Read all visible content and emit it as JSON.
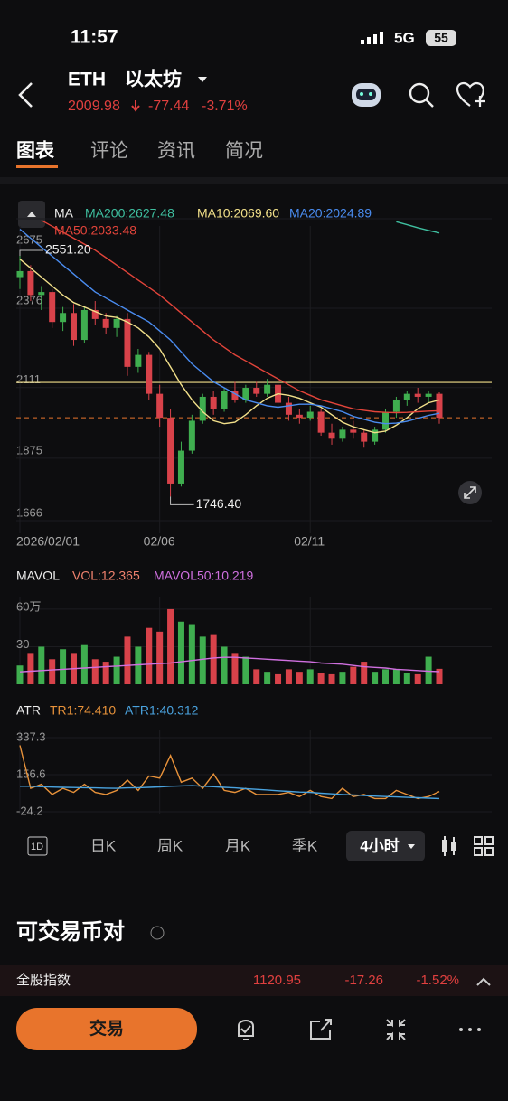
{
  "status": {
    "time": "11:57",
    "network": "5G",
    "battery": "55"
  },
  "header": {
    "symbol": "ETH",
    "name": "以太坊",
    "price": "2009.98",
    "change": "-77.44",
    "change_pct": "-3.71%"
  },
  "tabs": [
    "图表",
    "评论",
    "资讯",
    "简况"
  ],
  "chart_data": {
    "type": "candlestick",
    "title": "MA",
    "categories": [
      "2026/02/01",
      null,
      null,
      null,
      null,
      null,
      null,
      null,
      null,
      null,
      null,
      null,
      null,
      "02/06",
      null,
      null,
      null,
      null,
      null,
      null,
      null,
      null,
      null,
      null,
      null,
      null,
      null,
      "02/11",
      null,
      null,
      null,
      null,
      null,
      null,
      null,
      null,
      null,
      null,
      null,
      null
    ],
    "candles": [
      [
        2480,
        2551.2,
        2440,
        2500
      ],
      [
        2500,
        2520,
        2400,
        2420
      ],
      [
        2420,
        2450,
        2370,
        2430
      ],
      [
        2430,
        2440,
        2310,
        2330
      ],
      [
        2330,
        2380,
        2300,
        2360
      ],
      [
        2360,
        2390,
        2250,
        2270
      ],
      [
        2270,
        2380,
        2260,
        2370
      ],
      [
        2370,
        2400,
        2320,
        2340
      ],
      [
        2340,
        2360,
        2290,
        2310
      ],
      [
        2310,
        2350,
        2280,
        2340
      ],
      [
        2340,
        2360,
        2150,
        2180
      ],
      [
        2180,
        2240,
        2160,
        2220
      ],
      [
        2220,
        2230,
        2070,
        2090
      ],
      [
        2090,
        2120,
        1980,
        2010
      ],
      [
        2010,
        2040,
        1746.4,
        1790
      ],
      [
        1790,
        1930,
        1780,
        1900
      ],
      [
        1900,
        2020,
        1890,
        2000
      ],
      [
        2000,
        2090,
        1990,
        2080
      ],
      [
        2080,
        2100,
        2020,
        2040
      ],
      [
        2040,
        2110,
        2030,
        2100
      ],
      [
        2100,
        2130,
        2060,
        2070
      ],
      [
        2070,
        2120,
        2060,
        2110
      ],
      [
        2110,
        2130,
        2080,
        2090
      ],
      [
        2090,
        2140,
        2080,
        2120
      ],
      [
        2120,
        2130,
        2050,
        2060
      ],
      [
        2060,
        2080,
        2000,
        2020
      ],
      [
        2020,
        2040,
        1990,
        2010
      ],
      [
        2010,
        2050,
        2000,
        2030
      ],
      [
        2030,
        2040,
        1950,
        1960
      ],
      [
        1960,
        1990,
        1920,
        1940
      ],
      [
        1940,
        1980,
        1930,
        1970
      ],
      [
        1970,
        2000,
        1940,
        1960
      ],
      [
        1960,
        1970,
        1910,
        1930
      ],
      [
        1930,
        1980,
        1920,
        1970
      ],
      [
        1970,
        2040,
        1960,
        2030
      ],
      [
        2030,
        2080,
        2010,
        2070
      ],
      [
        2070,
        2100,
        2050,
        2090
      ],
      [
        2090,
        2110,
        2060,
        2080
      ],
      [
        2080,
        2100,
        2060,
        2090
      ],
      [
        2090,
        2095,
        1990,
        2009.98
      ]
    ],
    "up_color": "#3fae4f",
    "down_color": "#d8424a",
    "ylim": [
      1666,
      2675
    ],
    "yticks": [
      2675,
      2376,
      2111,
      1875,
      1666
    ],
    "grid": true,
    "level": 2128,
    "series": [
      {
        "label": "MA200:2627.48",
        "color": "#3fbfa0",
        "values": [
          null,
          null,
          null,
          null,
          null,
          null,
          null,
          null,
          null,
          null,
          null,
          null,
          null,
          null,
          null,
          null,
          null,
          null,
          null,
          null,
          null,
          null,
          null,
          null,
          null,
          null,
          null,
          null,
          null,
          null,
          null,
          null,
          null,
          null,
          null,
          2665,
          2655,
          2645,
          2636,
          2627.48
        ]
      },
      {
        "label": "MA10:2069.60",
        "color": "#f2e08a",
        "values": [
          2540,
          2510,
          2480,
          2450,
          2420,
          2395,
          2380,
          2365,
          2350,
          2345,
          2330,
          2310,
          2280,
          2240,
          2180,
          2120,
          2070,
          2030,
          2000,
          1990,
          1995,
          2020,
          2050,
          2075,
          2090,
          2085,
          2075,
          2060,
          2045,
          2020,
          1995,
          1980,
          1970,
          1960,
          1965,
          1985,
          2010,
          2040,
          2060,
          2069.6
        ]
      },
      {
        "label": "MA20:2024.89",
        "color": "#4a8cf0",
        "values": [
          2640,
          2610,
          2580,
          2550,
          2520,
          2490,
          2460,
          2430,
          2410,
          2390,
          2370,
          2350,
          2330,
          2300,
          2270,
          2230,
          2190,
          2160,
          2130,
          2110,
          2090,
          2070,
          2060,
          2050,
          2045,
          2050,
          2055,
          2055,
          2050,
          2040,
          2030,
          2015,
          2005,
          1995,
          1990,
          1992,
          1998,
          2008,
          2018,
          2024.89
        ]
      },
      {
        "label": "MA50:2033.48",
        "color": "#e2443a",
        "values": [
          null,
          null,
          2670,
          2650,
          2630,
          2610,
          2590,
          2570,
          2545,
          2520,
          2495,
          2470,
          2445,
          2420,
          2390,
          2360,
          2330,
          2300,
          2270,
          2245,
          2220,
          2200,
          2180,
          2160,
          2140,
          2120,
          2100,
          2085,
          2070,
          2060,
          2050,
          2040,
          2035,
          2030,
          2028,
          2027,
          2028,
          2030,
          2032,
          2033.48
        ]
      }
    ],
    "annotations": [
      {
        "value": 2551.2,
        "label": "2551.20"
      },
      {
        "value": 1746.4,
        "label": "1746.40"
      }
    ]
  },
  "volume": {
    "title": "MAVOL",
    "label": "VOL:12.365",
    "label_color": "#f0826e",
    "values": [
      15,
      25,
      30,
      20,
      28,
      25,
      32,
      20,
      18,
      22,
      38,
      30,
      45,
      42,
      60,
      50,
      48,
      38,
      40,
      30,
      25,
      22,
      12,
      10,
      8,
      12,
      10,
      12,
      9,
      8,
      10,
      14,
      18,
      10,
      12,
      12,
      9,
      8,
      22,
      12.365
    ],
    "ylim": [
      0,
      65
    ],
    "yticks": [
      {
        "value": 60,
        "label": "60万"
      },
      30
    ],
    "line": {
      "label": "MAVOL50:10.219",
      "color": "#d070e0",
      "values": [
        10,
        10.5,
        11,
        11.5,
        12,
        12.5,
        13,
        13.5,
        14,
        14.5,
        15,
        15.5,
        16,
        16.5,
        17,
        18,
        19,
        20,
        21,
        21.5,
        21.5,
        21,
        20.5,
        20,
        19.5,
        19,
        18.5,
        18,
        17,
        16.5,
        16,
        15,
        14,
        13.5,
        13,
        12,
        11.5,
        11,
        10.5,
        10.219
      ]
    }
  },
  "atr": {
    "title": "ATR",
    "ylim": [
      -24.2,
      337.3
    ],
    "yticks": [
      337.3,
      156.6,
      -24.2
    ],
    "series": [
      {
        "label": "TR1:74.410",
        "color": "#e8923a",
        "values": [
          300,
          90,
          110,
          60,
          90,
          70,
          110,
          70,
          60,
          80,
          130,
          80,
          150,
          140,
          250,
          120,
          140,
          90,
          160,
          80,
          70,
          90,
          60,
          60,
          60,
          70,
          50,
          80,
          50,
          40,
          90,
          50,
          60,
          40,
          40,
          80,
          60,
          40,
          50,
          74.41
        ]
      },
      {
        "label": "ATR1:40.312",
        "color": "#4aa3df",
        "values": [
          100,
          100,
          98,
          96,
          95,
          94,
          93,
          92,
          91,
          90,
          92,
          93,
          95,
          97,
          100,
          102,
          103,
          100,
          98,
          95,
          92,
          88,
          85,
          82,
          78,
          75,
          72,
          70,
          66,
          63,
          60,
          58,
          55,
          52,
          50,
          48,
          46,
          44,
          42,
          40.312
        ]
      }
    ]
  },
  "periods": [
    "1D",
    "日K",
    "周K",
    "月K",
    "季K",
    "4小时"
  ],
  "pairs": {
    "title": "可交易币对",
    "rows": [
      [
        "全股指数",
        "1120.95",
        "-17.26",
        "-1.52%"
      ]
    ]
  },
  "trade_button": "交易"
}
